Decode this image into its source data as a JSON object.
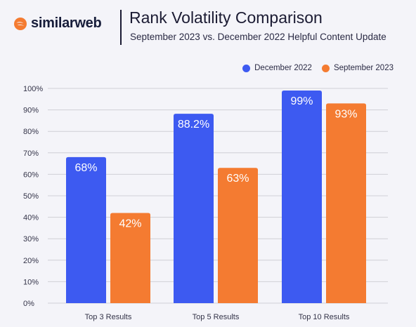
{
  "brand": {
    "name": "similarweb"
  },
  "colors": {
    "blue": "#3d5af1",
    "orange": "#f47b31",
    "grid": "#cfcfd6",
    "background": "#f4f4f9"
  },
  "chart_data": {
    "type": "bar",
    "title": "Rank Volatility Comparison",
    "subtitle": "September 2023 vs. December 2022 Helpful Content Update",
    "categories": [
      "Top 3 Results",
      "Top 5 Results",
      "Top 10 Results"
    ],
    "series": [
      {
        "name": "December 2022",
        "values": [
          68,
          88.2,
          99
        ],
        "labels": [
          "68%",
          "88.2%",
          "99%"
        ],
        "color": "#3d5af1"
      },
      {
        "name": "September 2023",
        "values": [
          42,
          63,
          93
        ],
        "labels": [
          "42%",
          "63%",
          "93%"
        ],
        "color": "#f47b31"
      }
    ],
    "yticks": [
      "0%",
      "10%",
      "20%",
      "30%",
      "40%",
      "50%",
      "60%",
      "70%",
      "80%",
      "90%",
      "100%"
    ],
    "ylim": [
      0,
      100
    ],
    "grid": true,
    "legend_position": "top-right"
  }
}
